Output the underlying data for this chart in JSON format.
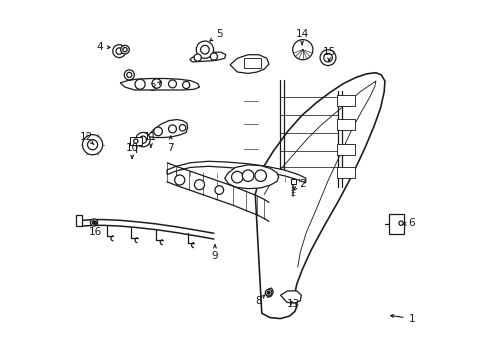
{
  "bg_color": "#ffffff",
  "line_color": "#1a1a1a",
  "lw": 0.9,
  "font_size": 7.5,
  "label_positions": {
    "1": [
      0.965,
      0.115,
      0.895,
      0.125
    ],
    "2": [
      0.66,
      0.49,
      0.628,
      0.468
    ],
    "3": [
      0.245,
      0.755,
      0.27,
      0.775
    ],
    "4": [
      0.098,
      0.87,
      0.13,
      0.868
    ],
    "5": [
      0.43,
      0.905,
      0.395,
      0.88
    ],
    "6": [
      0.965,
      0.38,
      0.93,
      0.376
    ],
    "7": [
      0.295,
      0.59,
      0.295,
      0.625
    ],
    "8": [
      0.54,
      0.165,
      0.558,
      0.182
    ],
    "9": [
      0.418,
      0.29,
      0.418,
      0.33
    ],
    "10": [
      0.188,
      0.59,
      0.188,
      0.558
    ],
    "11": [
      0.24,
      0.62,
      0.24,
      0.59
    ],
    "12": [
      0.06,
      0.62,
      0.082,
      0.598
    ],
    "13": [
      0.635,
      0.155,
      0.622,
      0.172
    ],
    "14": [
      0.66,
      0.905,
      0.66,
      0.875
    ],
    "15": [
      0.735,
      0.855,
      0.735,
      0.828
    ],
    "16": [
      0.085,
      0.355,
      0.09,
      0.385
    ]
  }
}
